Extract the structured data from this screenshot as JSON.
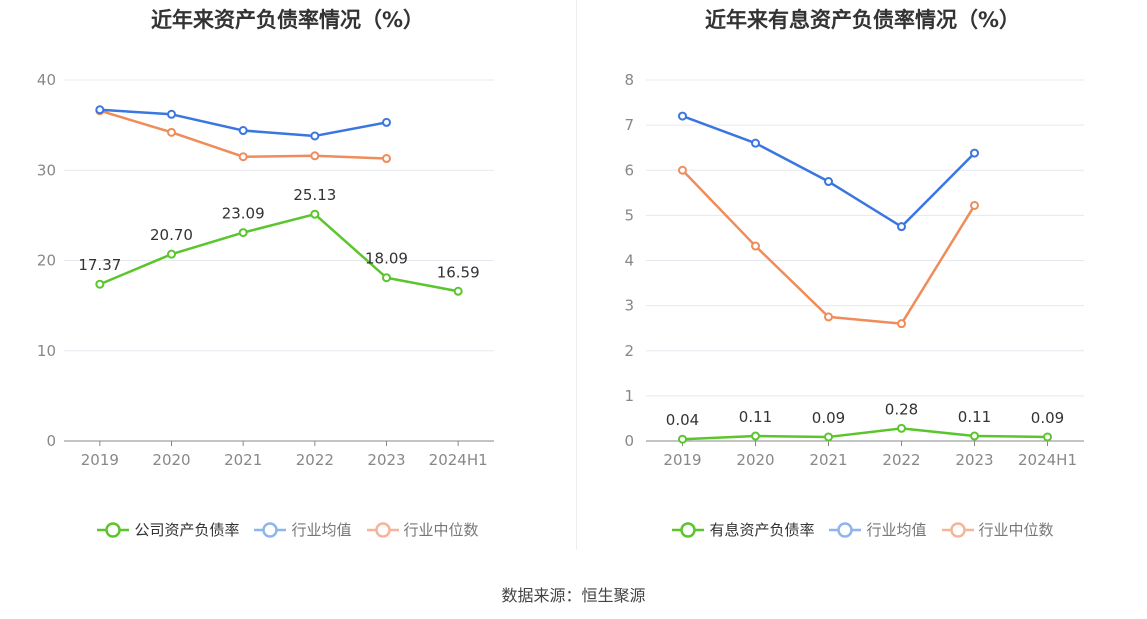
{
  "source_text": "数据来源：恒生聚源",
  "chart_data": [
    {
      "type": "line",
      "title": "近年来资产负债率情况（%）",
      "xlabel": "",
      "ylabel": "",
      "categories": [
        "2019",
        "2020",
        "2021",
        "2022",
        "2023",
        "2024H1"
      ],
      "ylim": [
        0,
        40
      ],
      "yticks": [
        0,
        10,
        20,
        30,
        40
      ],
      "series": [
        {
          "name": "公司资产负债率",
          "color": "#5ac62b",
          "values": [
            17.37,
            20.7,
            23.09,
            25.13,
            18.09,
            16.59
          ],
          "labels": [
            "17.37",
            "20.70",
            "23.09",
            "25.13",
            "18.09",
            "16.59"
          ],
          "show_labels": true
        },
        {
          "name": "行业均值",
          "color": "#3a76e0",
          "values": [
            36.7,
            36.2,
            34.4,
            33.8,
            35.3,
            null
          ],
          "show_labels": false
        },
        {
          "name": "行业中位数",
          "color": "#f08c5a",
          "values": [
            36.6,
            34.2,
            31.5,
            31.6,
            31.3,
            null
          ],
          "show_labels": false
        }
      ],
      "legend": [
        {
          "label": "公司资产负债率",
          "color": "#5ac62b",
          "active": true
        },
        {
          "label": "行业均值",
          "color": "#8fb4ee",
          "active": false
        },
        {
          "label": "行业中位数",
          "color": "#f6b49a",
          "active": false
        }
      ]
    },
    {
      "type": "line",
      "title": "近年来有息资产负债率情况（%）",
      "xlabel": "",
      "ylabel": "",
      "categories": [
        "2019",
        "2020",
        "2021",
        "2022",
        "2023",
        "2024H1"
      ],
      "ylim": [
        0,
        8
      ],
      "yticks": [
        0,
        1,
        2,
        3,
        4,
        5,
        6,
        7,
        8
      ],
      "series": [
        {
          "name": "有息资产负债率",
          "color": "#5ac62b",
          "values": [
            0.04,
            0.11,
            0.09,
            0.28,
            0.11,
            0.09
          ],
          "labels": [
            "0.04",
            "0.11",
            "0.09",
            "0.28",
            "0.11",
            "0.09"
          ],
          "show_labels": true
        },
        {
          "name": "行业均值",
          "color": "#3a76e0",
          "values": [
            7.2,
            6.6,
            5.75,
            4.75,
            6.38,
            null
          ],
          "show_labels": false
        },
        {
          "name": "行业中位数",
          "color": "#f08c5a",
          "values": [
            6.0,
            4.32,
            2.75,
            2.6,
            5.22,
            null
          ],
          "show_labels": false
        }
      ],
      "legend": [
        {
          "label": "有息资产负债率",
          "color": "#5ac62b",
          "active": true
        },
        {
          "label": "行业均值",
          "color": "#8fb4ee",
          "active": false
        },
        {
          "label": "行业中位数",
          "color": "#f6b49a",
          "active": false
        }
      ]
    }
  ]
}
